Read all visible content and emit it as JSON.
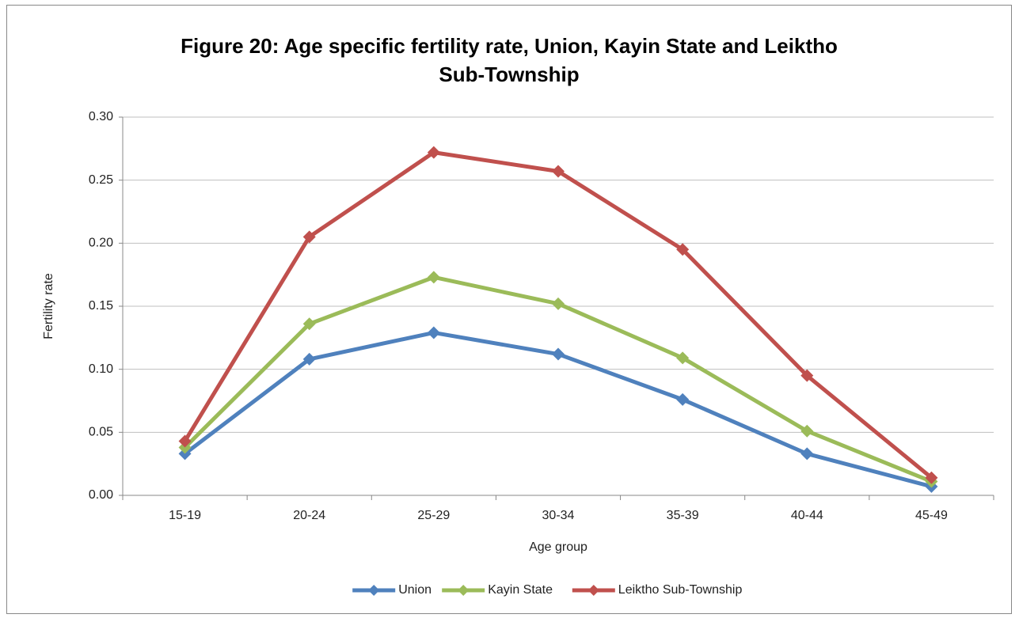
{
  "chart_data": {
    "type": "line",
    "title": "Figure 20: Age specific fertility rate, Union, Kayin State and Leiktho Sub-Township",
    "x_label": "Age group",
    "y_label": "Fertility rate",
    "categories": [
      "15-19",
      "20-24",
      "25-29",
      "30-34",
      "35-39",
      "40-44",
      "45-49"
    ],
    "series": [
      {
        "name": "Union",
        "color": "#4f81bd",
        "values": [
          0.033,
          0.108,
          0.129,
          0.112,
          0.076,
          0.033,
          0.007
        ]
      },
      {
        "name": "Kayin State",
        "color": "#9bbb59",
        "values": [
          0.038,
          0.136,
          0.173,
          0.152,
          0.109,
          0.051,
          0.011
        ]
      },
      {
        "name": "Leiktho Sub-Township",
        "color": "#c0504d",
        "values": [
          0.043,
          0.205,
          0.272,
          0.257,
          0.195,
          0.095,
          0.014
        ]
      }
    ],
    "ylim": [
      0,
      0.3
    ],
    "yticks": [
      {
        "value": 0,
        "label": "0.00"
      },
      {
        "value": 0.05,
        "label": "0.05"
      },
      {
        "value": 0.1,
        "label": "0.10"
      },
      {
        "value": 0.15,
        "label": "0.15"
      },
      {
        "value": 0.2,
        "label": "0.20"
      },
      {
        "value": 0.25,
        "label": "0.25"
      },
      {
        "value": 0.3,
        "label": "0.30"
      }
    ],
    "grid": true,
    "legend": "bottom"
  }
}
